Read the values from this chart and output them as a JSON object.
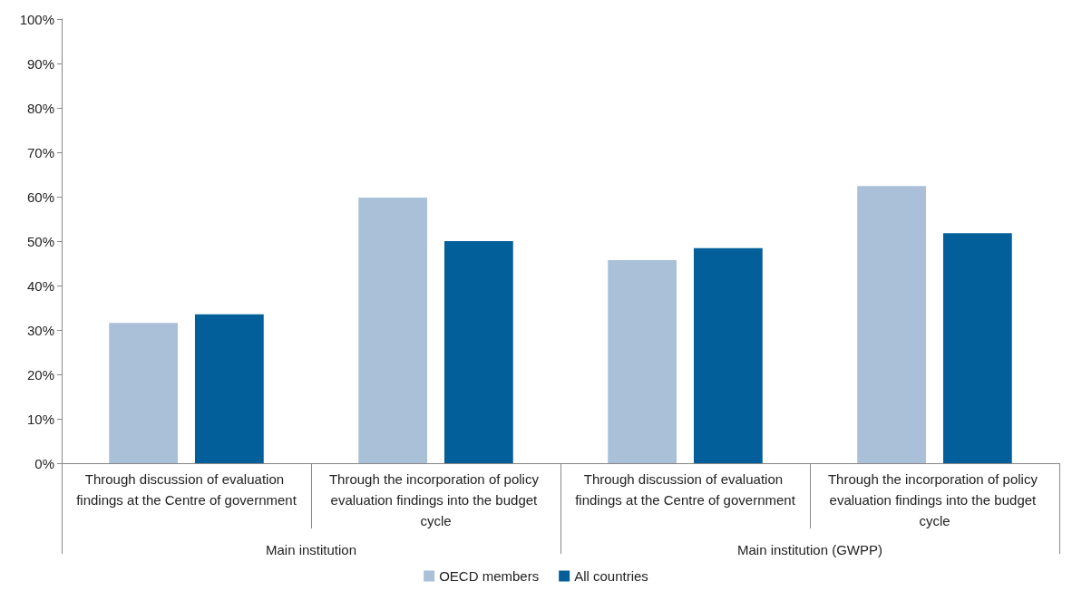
{
  "chart_data": {
    "type": "bar",
    "categories": [
      "Through discussion of evaluation findings at the Centre of government",
      "Through the incorporation of policy evaluation findings into the budget cycle",
      "Through discussion of evaluation findings at the Centre of government",
      "Through the incorporation of policy evaluation findings into the budget cycle"
    ],
    "series": [
      {
        "name": "OECD members",
        "color": "#a9c0d8",
        "values": [
          31.6,
          59.8,
          45.7,
          62.4
        ]
      },
      {
        "name": "All countries",
        "color": "#035f99",
        "values": [
          33.5,
          50,
          48.4,
          51.8
        ]
      }
    ],
    "annotations": [
      "Main institution",
      "Main institution (GWPP)"
    ],
    "ylim": [
      0,
      100
    ],
    "yticks": [
      {
        "value": 0,
        "label": "0%"
      },
      {
        "value": 10,
        "label": "10%"
      },
      {
        "value": 20,
        "label": "20%"
      },
      {
        "value": 30,
        "label": "30%"
      },
      {
        "value": 40,
        "label": "40%"
      },
      {
        "value": 50,
        "label": "50%"
      },
      {
        "value": 60,
        "label": "60%"
      },
      {
        "value": 70,
        "label": "70%"
      },
      {
        "value": 80,
        "label": "80%"
      },
      {
        "value": 90,
        "label": "90%"
      },
      {
        "value": 100,
        "label": "100%"
      }
    ],
    "grid": false,
    "legend": "bottom"
  }
}
